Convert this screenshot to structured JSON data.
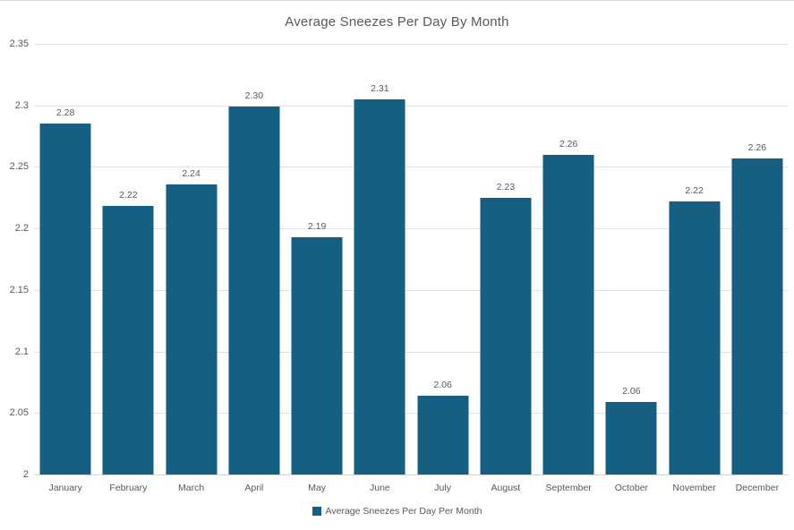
{
  "title": "Average Sneezes Per Day By Month",
  "legend": {
    "label": "Average Sneezes Per Day Per Month"
  },
  "colors": {
    "bar": "#156082",
    "gridline": "#e2e2e2",
    "axis_line": "#d2d2d2",
    "text": "#595959"
  },
  "y_axis": {
    "tick_labels": [
      "2.35",
      "2.3",
      "2.25",
      "2.2",
      "2.15",
      "2.1",
      "2.05",
      "2"
    ],
    "tick_values": [
      2.35,
      2.3,
      2.25,
      2.2,
      2.15,
      2.1,
      2.05,
      2
    ]
  },
  "chart_data": {
    "type": "bar",
    "title": "Average Sneezes Per Day By Month",
    "categories": [
      "January",
      "February",
      "March",
      "April",
      "May",
      "June",
      "July",
      "August",
      "September",
      "October",
      "November",
      "December"
    ],
    "series": [
      {
        "name": "Average Sneezes Per Day Per Month",
        "values": [
          2.285,
          2.218,
          2.236,
          2.299,
          2.193,
          2.305,
          2.064,
          2.225,
          2.26,
          2.059,
          2.222,
          2.257
        ],
        "data_labels": [
          "2.28",
          "2.22",
          "2.24",
          "2.30",
          "2.19",
          "2.31",
          "2.06",
          "2.23",
          "2.26",
          "2.06",
          "2.22",
          "2.26"
        ]
      }
    ],
    "xlabel": "",
    "ylabel": "",
    "ylim": [
      2,
      2.35
    ],
    "ytick_step": 0.05,
    "grid": true,
    "legend_position": "bottom"
  }
}
